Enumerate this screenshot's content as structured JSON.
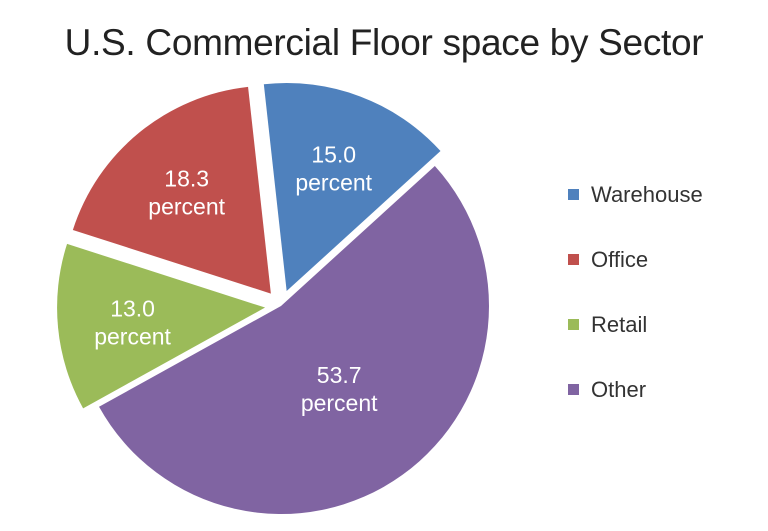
{
  "chart_data": {
    "type": "pie",
    "title": "U.S. Commercial Floor space by Sector",
    "slices": [
      {
        "name": "Warehouse",
        "value": 15.0,
        "color": "#4f81bd",
        "value_label": "15.0",
        "unit_label": "percent",
        "exploded": true
      },
      {
        "name": "Office",
        "value": 18.3,
        "color": "#c0504d",
        "value_label": "18.3",
        "unit_label": "percent",
        "exploded": true
      },
      {
        "name": "Retail",
        "value": 13.0,
        "color": "#9bbb59",
        "value_label": "13.0",
        "unit_label": "percent",
        "exploded": true
      },
      {
        "name": "Other",
        "value": 53.7,
        "color": "#8064a2",
        "value_label": "53.7",
        "unit_label": "percent",
        "exploded": false
      }
    ],
    "legend_order": [
      "Warehouse",
      "Office",
      "Retail",
      "Other"
    ],
    "legend_position": "right"
  }
}
